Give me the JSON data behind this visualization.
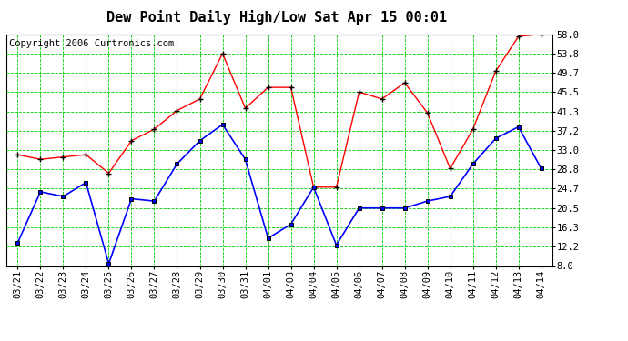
{
  "title": "Dew Point Daily High/Low Sat Apr 15 00:01",
  "copyright": "Copyright 2006 Curtronics.com",
  "x_labels": [
    "03/21",
    "03/22",
    "03/23",
    "03/24",
    "03/25",
    "03/26",
    "03/27",
    "03/28",
    "03/29",
    "03/30",
    "03/31",
    "04/01",
    "04/03",
    "04/04",
    "04/05",
    "04/06",
    "04/07",
    "04/08",
    "04/09",
    "04/10",
    "04/11",
    "04/12",
    "04/13",
    "04/14"
  ],
  "high_values": [
    32.0,
    31.0,
    31.5,
    32.0,
    28.0,
    35.0,
    37.5,
    41.5,
    44.0,
    53.8,
    42.0,
    46.5,
    46.5,
    25.0,
    25.0,
    45.5,
    44.0,
    47.5,
    41.0,
    29.0,
    37.5,
    50.0,
    57.5,
    58.0
  ],
  "low_values": [
    13.0,
    24.0,
    23.0,
    26.0,
    8.5,
    22.5,
    22.0,
    30.0,
    35.0,
    38.5,
    31.0,
    14.0,
    17.0,
    25.0,
    12.5,
    20.5,
    20.5,
    20.5,
    22.0,
    23.0,
    30.0,
    35.5,
    38.0,
    29.0
  ],
  "y_ticks": [
    8.0,
    12.2,
    16.3,
    20.5,
    24.7,
    28.8,
    33.0,
    37.2,
    41.3,
    45.5,
    49.7,
    53.8,
    58.0
  ],
  "y_min": 8.0,
  "y_max": 58.0,
  "high_color": "#ff0000",
  "low_color": "#0000ff",
  "bg_color": "#ffffff",
  "grid_major_color": "#00cc00",
  "grid_minor_color": "#00cc00",
  "dashed_vert_color": "#aaaaaa",
  "title_fontsize": 11,
  "copyright_fontsize": 7.5,
  "tick_fontsize": 7.5,
  "dashed_vert_positions": [
    3,
    7,
    11,
    15,
    19
  ]
}
